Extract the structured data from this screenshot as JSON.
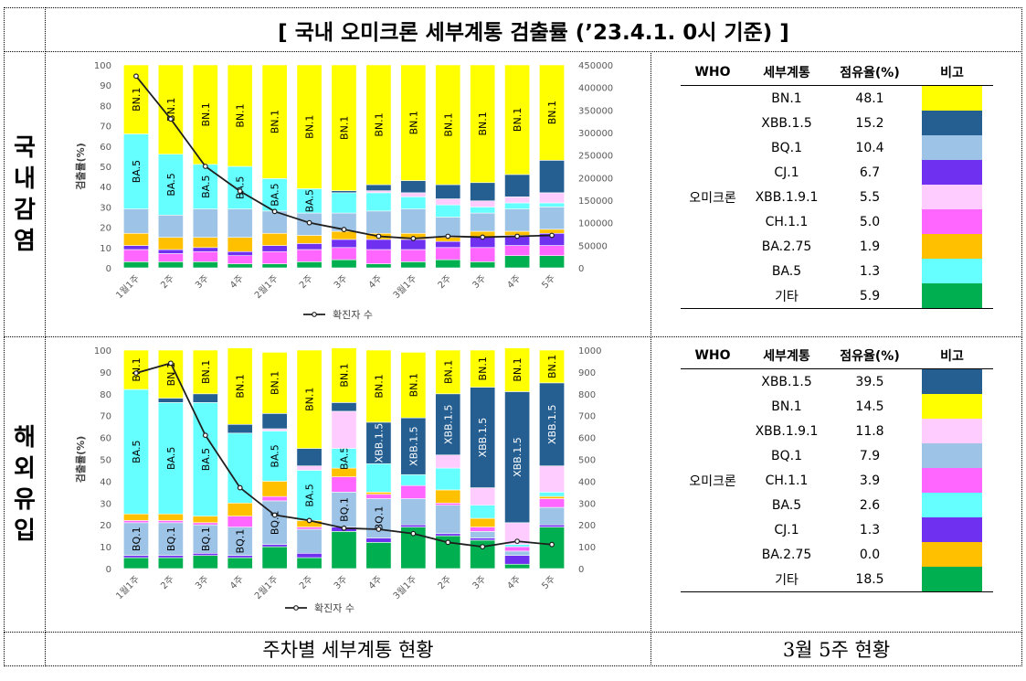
{
  "title": "[ 국내 오미크론 세부계통 검출률 (’23.4.1. 0시 기준) ]",
  "sections": {
    "domestic": [
      "국",
      "내",
      "감",
      "염"
    ],
    "overseas": [
      "해",
      "외",
      "유",
      "입"
    ]
  },
  "footer": {
    "left": "주차별 세부계통 현황",
    "right": "3월 5주 현황"
  },
  "colors": {
    "BN.1": "#FFFF00",
    "XBB.1.5": "#255E91",
    "BQ.1": "#9DC3E6",
    "CJ.1": "#7030F0",
    "XBB.1.9.1": "#FFCCFF",
    "CH.1.1": "#FF66FF",
    "BA.2.75": "#FFC000",
    "BA.5": "#66FFFF",
    "기타": "#00B050",
    "line": "#1F1F1F"
  },
  "table_headers": [
    "WHO",
    "세부계통",
    "점유율(%)",
    "비고"
  ],
  "domestic_table": {
    "who": "오미크론",
    "rows": [
      {
        "lineage": "BN.1",
        "share": "48.1",
        "color": "#FFFF00"
      },
      {
        "lineage": "XBB.1.5",
        "share": "15.2",
        "color": "#255E91"
      },
      {
        "lineage": "BQ.1",
        "share": "10.4",
        "color": "#9DC3E6"
      },
      {
        "lineage": "CJ.1",
        "share": "6.7",
        "color": "#7030F0"
      },
      {
        "lineage": "XBB.1.9.1",
        "share": "5.5",
        "color": "#FFCCFF"
      },
      {
        "lineage": "CH.1.1",
        "share": "5.0",
        "color": "#FF66FF"
      },
      {
        "lineage": "BA.2.75",
        "share": "1.9",
        "color": "#FFC000"
      },
      {
        "lineage": "BA.5",
        "share": "1.3",
        "color": "#66FFFF"
      },
      {
        "lineage": "기타",
        "share": "5.9",
        "color": "#00B050"
      }
    ]
  },
  "overseas_table": {
    "who": "오미크론",
    "rows": [
      {
        "lineage": "XBB.1.5",
        "share": "39.5",
        "color": "#255E91"
      },
      {
        "lineage": "BN.1",
        "share": "14.5",
        "color": "#FFFF00"
      },
      {
        "lineage": "XBB.1.9.1",
        "share": "11.8",
        "color": "#FFCCFF"
      },
      {
        "lineage": "BQ.1",
        "share": "7.9",
        "color": "#9DC3E6"
      },
      {
        "lineage": "CH.1.1",
        "share": "3.9",
        "color": "#FF66FF"
      },
      {
        "lineage": "BA.5",
        "share": "2.6",
        "color": "#66FFFF"
      },
      {
        "lineage": "CJ.1",
        "share": "1.3",
        "color": "#7030F0"
      },
      {
        "lineage": "BA.2.75",
        "share": "0.0",
        "color": "#FFC000"
      },
      {
        "lineage": "기타",
        "share": "18.5",
        "color": "#00B050"
      }
    ]
  },
  "chart_data": [
    {
      "type": "bar",
      "stacked": true,
      "ylabel": "검출률(%)",
      "ylim": [
        0,
        100
      ],
      "y_ticks": [
        0,
        10,
        20,
        30,
        40,
        50,
        60,
        70,
        80,
        90,
        100
      ],
      "y2lim": [
        0,
        450000
      ],
      "y2_ticks": [
        0,
        50000,
        100000,
        150000,
        200000,
        250000,
        300000,
        350000,
        400000,
        450000
      ],
      "categories": [
        "1월1주",
        "2주",
        "3주",
        "4주",
        "2월1주",
        "2주",
        "3주",
        "4주",
        "3월1주",
        "2주",
        "3주",
        "4주",
        "5주"
      ],
      "legend": "확진자 수",
      "stack_order": [
        "기타",
        "CH.1.1",
        "CJ.1",
        "BA.2.75",
        "BQ.1",
        "BA.5",
        "XBB.1.9.1",
        "XBB.1.5",
        "BN.1"
      ],
      "series": [
        {
          "name": "기타",
          "values": [
            3,
            3,
            3,
            2,
            2,
            3,
            4,
            2,
            3,
            4,
            3,
            6,
            6
          ]
        },
        {
          "name": "CH.1.1",
          "values": [
            6,
            4,
            5,
            4,
            6,
            6,
            6,
            7,
            6,
            6,
            7,
            5,
            5
          ]
        },
        {
          "name": "CJ.1",
          "values": [
            2,
            2,
            2,
            2,
            3,
            3,
            4,
            5,
            5,
            3,
            5,
            5,
            6
          ]
        },
        {
          "name": "BA.2.75",
          "values": [
            6,
            6,
            5,
            7,
            6,
            4,
            4,
            3,
            3,
            2,
            3,
            2,
            2
          ]
        },
        {
          "name": "BQ.1",
          "values": [
            12,
            11,
            14,
            14,
            11,
            11,
            9,
            11,
            12,
            10,
            9,
            11,
            11
          ]
        },
        {
          "name": "BA.5",
          "values": [
            37,
            30,
            22,
            21,
            16,
            12,
            10,
            9,
            6,
            6,
            3,
            3,
            2
          ]
        },
        {
          "name": "XBB.1.9.1",
          "values": [
            0,
            0,
            0,
            0,
            0,
            0,
            0,
            1,
            2,
            3,
            3,
            3,
            5
          ]
        },
        {
          "name": "XBB.1.5",
          "values": [
            0,
            0,
            0,
            0,
            0,
            0,
            1,
            3,
            6,
            7,
            9,
            11,
            16
          ]
        },
        {
          "name": "BN.1",
          "values": [
            34,
            44,
            49,
            50,
            56,
            61,
            62,
            59,
            57,
            59,
            58,
            54,
            47
          ]
        }
      ],
      "bar_labels": [
        {
          "name": "BN.1",
          "values": [
            "BN.1",
            "BN.1",
            "BN.1",
            "BN.1",
            "BN.1",
            "BN.1",
            "BN.1",
            "BN.1",
            "BN.1",
            "BN.1",
            "BN.1",
            "BN.1",
            "BN.1"
          ]
        },
        {
          "name": "BA.5",
          "values": [
            "BA.5",
            "BA.5",
            "BA.5",
            "BA.5",
            "BA.5",
            "BA.5",
            "",
            "",
            "",
            "",
            "",
            "",
            ""
          ]
        }
      ],
      "line": {
        "name": "확진자 수",
        "values": [
          425000,
          330000,
          225000,
          170000,
          125000,
          100000,
          85000,
          70000,
          65000,
          70000,
          68000,
          70000,
          72000
        ]
      }
    },
    {
      "type": "bar",
      "stacked": true,
      "ylabel": "검출률(%)",
      "ylim": [
        0,
        100
      ],
      "y_ticks": [
        0,
        10,
        20,
        30,
        40,
        50,
        60,
        70,
        80,
        90,
        100
      ],
      "y2lim": [
        0,
        1000
      ],
      "y2_ticks": [
        0,
        100,
        200,
        300,
        400,
        500,
        600,
        700,
        800,
        900,
        1000
      ],
      "categories": [
        "1월1주",
        "2주",
        "3주",
        "4주",
        "2월1주",
        "2주",
        "3주",
        "4주",
        "3월1주",
        "2주",
        "3주",
        "4주",
        "5주"
      ],
      "legend": "확진자 수",
      "stack_order": [
        "기타",
        "CJ.1",
        "BQ.1",
        "CH.1.1",
        "BA.2.75",
        "BA.5",
        "XBB.1.9.1",
        "XBB.1.5",
        "BN.1"
      ],
      "series": [
        {
          "name": "기타",
          "values": [
            5,
            5,
            6,
            5,
            10,
            5,
            17,
            12,
            19,
            15,
            13,
            2,
            19
          ]
        },
        {
          "name": "CJ.1",
          "values": [
            1,
            1,
            1,
            1,
            1,
            2,
            2,
            2,
            1,
            1,
            1,
            4,
            1
          ]
        },
        {
          "name": "BQ.1",
          "values": [
            15,
            15,
            13,
            13,
            20,
            11,
            16,
            18,
            12,
            13,
            3,
            2,
            8
          ]
        },
        {
          "name": "CH.1.1",
          "values": [
            1,
            1,
            1,
            5,
            2,
            1,
            7,
            2,
            6,
            1,
            2,
            2,
            4
          ]
        },
        {
          "name": "BA.2.75",
          "values": [
            3,
            3,
            3,
            6,
            7,
            3,
            4,
            1,
            0,
            6,
            4,
            0,
            1
          ]
        },
        {
          "name": "BA.5",
          "values": [
            57,
            51,
            52,
            32,
            23,
            23,
            9,
            13,
            5,
            10,
            6,
            1,
            2
          ]
        },
        {
          "name": "XBB.1.9.1",
          "values": [
            0,
            0,
            0,
            0,
            1,
            2,
            17,
            0,
            0,
            6,
            8,
            10,
            12
          ]
        },
        {
          "name": "XBB.1.5",
          "values": [
            0,
            2,
            4,
            4,
            7,
            8,
            4,
            19,
            26,
            28,
            46,
            60,
            38
          ]
        },
        {
          "name": "BN.1",
          "values": [
            18,
            22,
            20,
            35,
            28,
            45,
            25,
            33,
            30,
            20,
            17,
            20,
            15
          ]
        }
      ],
      "bar_labels": [
        {
          "name": "BN.1",
          "values": [
            "BN.1",
            "BN.1",
            "BN.1",
            "BN.1",
            "BN.1",
            "BN.1",
            "BN.1",
            "BN.1",
            "BN.1",
            "BN.1",
            "BN.1",
            "BN.1",
            "BN.1"
          ]
        },
        {
          "name": "BA.5",
          "values": [
            "BA.5",
            "BA.5",
            "BA.5",
            "",
            "BA.5",
            "BA.5",
            "BA.5",
            "",
            "",
            "",
            "",
            "",
            ""
          ]
        },
        {
          "name": "XBB.1.5",
          "values": [
            "",
            "",
            "",
            "",
            "",
            "",
            "",
            "XBB.1.5",
            "XBB.1.5",
            "XBB.1.5",
            "XBB.1.5",
            "XBB.1.5",
            "XBB.1.5"
          ]
        },
        {
          "name": "BQ.1",
          "values": [
            "BQ.1",
            "BQ.1",
            "BQ.1",
            "BQ.1",
            "BQ.1",
            "",
            "BQ.1",
            "BQ.1",
            "",
            "",
            "",
            "",
            ""
          ]
        }
      ],
      "line": {
        "name": "확진자 수",
        "values": [
          895,
          940,
          610,
          370,
          245,
          220,
          185,
          180,
          160,
          120,
          100,
          125,
          110
        ]
      }
    }
  ]
}
